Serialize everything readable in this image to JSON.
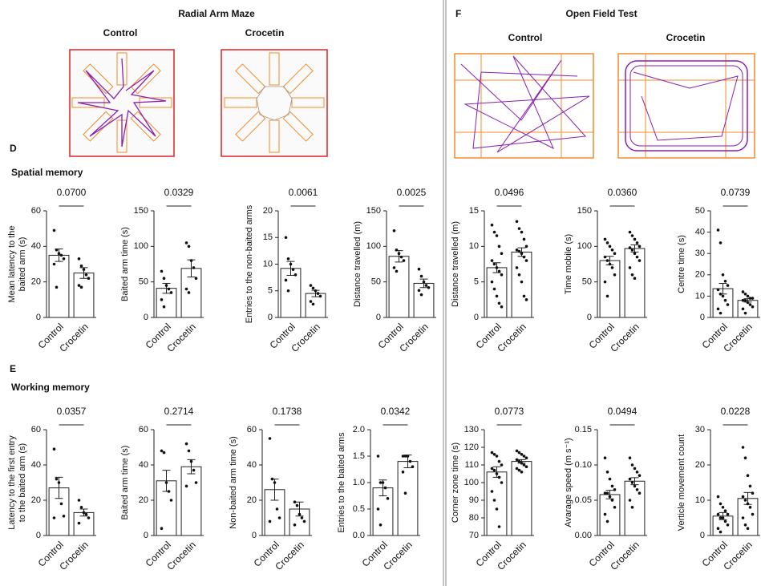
{
  "headers": {
    "maze_title": "Radial Arm Maze",
    "maze_control": "Control",
    "maze_crocetin": "Crocetin",
    "panel_d": "D",
    "spatial": "Spatial memory",
    "panel_e": "E",
    "working": "Working memory",
    "panel_f": "F",
    "oft_title": "Open Field Test",
    "oft_control": "Control",
    "oft_crocetin": "Crocetin"
  },
  "chart_data": [
    {
      "type": "bar",
      "y_label": [
        "Mean latency to the",
        "baited arm (s)"
      ],
      "annotation": "0.0700",
      "categories": [
        "Control",
        "Crocetin"
      ],
      "values": [
        35,
        25
      ],
      "errors": [
        3.5,
        3
      ],
      "points": [
        [
          49,
          38,
          36,
          35,
          33,
          30,
          17
        ],
        [
          33,
          29,
          27,
          24,
          22,
          18,
          17
        ]
      ],
      "color": "#ffffff",
      "ylim": [
        0,
        60
      ],
      "yticks": [
        0,
        20,
        40,
        60
      ]
    },
    {
      "type": "bar",
      "y_label": [
        "Baited arm time (s)"
      ],
      "annotation": "0.0329",
      "categories": [
        "Control",
        "Crocetin"
      ],
      "values": [
        41,
        69
      ],
      "errors": [
        7,
        12
      ],
      "points": [
        [
          65,
          55,
          45,
          40,
          35,
          25,
          15
        ],
        [
          105,
          100,
          80,
          70,
          55,
          40,
          35
        ]
      ],
      "color": "#ffffff",
      "ylim": [
        0,
        150
      ],
      "yticks": [
        0,
        50,
        100,
        150
      ]
    },
    {
      "type": "bar",
      "y_label": [
        "Entries to the non-baited arms"
      ],
      "annotation": "0.0061",
      "categories": [
        "Control",
        "Crocetin"
      ],
      "values": [
        9.2,
        4.5
      ],
      "errors": [
        1.3,
        0.6
      ],
      "points": [
        [
          15,
          11,
          10,
          9,
          8,
          7,
          5
        ],
        [
          6,
          5.5,
          5,
          4.5,
          4,
          3,
          2.5
        ]
      ],
      "color": "#ffffff",
      "ylim": [
        0,
        20
      ],
      "yticks": [
        0,
        5,
        10,
        15,
        20
      ]
    },
    {
      "type": "bar",
      "y_label": [
        "Distance travelled (m)"
      ],
      "annotation": "0.0025",
      "categories": [
        "Control",
        "Crocetin"
      ],
      "values": [
        86,
        48
      ],
      "errors": [
        8,
        6
      ],
      "points": [
        [
          122,
          95,
          90,
          85,
          80,
          70,
          65
        ],
        [
          68,
          58,
          50,
          45,
          42,
          38,
          32
        ]
      ],
      "color": "#ffffff",
      "ylim": [
        0,
        150
      ],
      "yticks": [
        0,
        50,
        100,
        150
      ]
    },
    {
      "type": "bar",
      "y_label": [
        "Latency to the first entry",
        "to the baited arm (s)"
      ],
      "annotation": "0.0357",
      "categories": [
        "Control",
        "Crocetin"
      ],
      "values": [
        27,
        13
      ],
      "errors": [
        6,
        2
      ],
      "points": [
        [
          49,
          32,
          30,
          18,
          11,
          10
        ],
        [
          20,
          16,
          13,
          12,
          10,
          7
        ]
      ],
      "color": "#ffffff",
      "ylim": [
        0,
        60
      ],
      "yticks": [
        0,
        20,
        40,
        60
      ]
    },
    {
      "type": "bar",
      "y_label": [
        "Baited arm time (s)"
      ],
      "annotation": "0.2714",
      "categories": [
        "Control",
        "Crocetin"
      ],
      "values": [
        31,
        39
      ],
      "errors": [
        6,
        4
      ],
      "points": [
        [
          48,
          47,
          30,
          25,
          20,
          4
        ],
        [
          52,
          48,
          42,
          37,
          30,
          28
        ]
      ],
      "color": "#ffffff",
      "ylim": [
        0,
        60
      ],
      "yticks": [
        0,
        20,
        40,
        60
      ]
    },
    {
      "type": "bar",
      "y_label": [
        "Non-baited arm time (s)"
      ],
      "annotation": "0.1738",
      "categories": [
        "Control",
        "Crocetin"
      ],
      "values": [
        26,
        15
      ],
      "errors": [
        6,
        4
      ],
      "points": [
        [
          55,
          32,
          30,
          15,
          10,
          8
        ],
        [
          19,
          17,
          12,
          10,
          8,
          6
        ]
      ],
      "color": "#ffffff",
      "ylim": [
        0,
        60
      ],
      "yticks": [
        0,
        20,
        40,
        60
      ]
    },
    {
      "type": "bar",
      "y_label": [
        "Entries to the baited arms"
      ],
      "annotation": "0.0342",
      "categories": [
        "Control",
        "Crocetin"
      ],
      "values": [
        0.9,
        1.4
      ],
      "errors": [
        0.15,
        0.12
      ],
      "points": [
        [
          1.5,
          1.0,
          1.0,
          0.9,
          0.7,
          0.5,
          0.2
        ],
        [
          1.5,
          1.5,
          1.5,
          1.4,
          1.3,
          1.2,
          0.8
        ]
      ],
      "color": "#ffffff",
      "ylim": [
        0,
        2
      ],
      "yticks": [
        {
          "value": 0,
          "label": "0.0"
        },
        {
          "value": 0.5,
          "label": "0.5"
        },
        {
          "value": 1,
          "label": "1.0"
        },
        {
          "value": 1.5,
          "label": "1.5"
        },
        {
          "value": 2,
          "label": "2.0"
        }
      ]
    },
    {
      "type": "bar",
      "y_label": [
        "Distance travelled (m)"
      ],
      "annotation": "0.0496",
      "categories": [
        "Control",
        "Crocetin"
      ],
      "values": [
        7,
        9.2
      ],
      "errors": [
        0.7,
        0.6
      ],
      "points": [
        [
          13,
          12,
          11.5,
          10,
          9,
          8,
          7.5,
          7,
          6.5,
          6,
          5,
          4,
          3,
          2,
          1.5
        ],
        [
          13.5,
          12.5,
          12,
          11,
          10,
          9.5,
          9.3,
          9,
          8.5,
          8,
          7,
          6,
          5,
          3,
          2.5
        ]
      ],
      "color": "#ffffff",
      "ylim": [
        0,
        15
      ],
      "yticks": [
        0,
        5,
        10,
        15
      ]
    },
    {
      "type": "bar",
      "y_label": [
        "Time mobile (s)"
      ],
      "annotation": "0.0360",
      "categories": [
        "Control",
        "Crocetin"
      ],
      "values": [
        80,
        97
      ],
      "errors": [
        6,
        5
      ],
      "points": [
        [
          110,
          105,
          100,
          95,
          90,
          85,
          80,
          75,
          70,
          60,
          50,
          30
        ],
        [
          120,
          115,
          110,
          105,
          100,
          98,
          95,
          90,
          85,
          80,
          70,
          60,
          55
        ]
      ],
      "color": "#ffffff",
      "ylim": [
        0,
        150
      ],
      "yticks": [
        0,
        50,
        100,
        150
      ]
    },
    {
      "type": "bar",
      "y_label": [
        "Centre time (s)"
      ],
      "annotation": "0.0739",
      "categories": [
        "Control",
        "Crocetin"
      ],
      "values": [
        13.5,
        8
      ],
      "errors": [
        2.5,
        0.8
      ],
      "points": [
        [
          41,
          35,
          20,
          17,
          15,
          13,
          11,
          10,
          8,
          6,
          4,
          2
        ],
        [
          12,
          11,
          10,
          9,
          9,
          8,
          8,
          7,
          6,
          5,
          4,
          2
        ]
      ],
      "color": "#ffffff",
      "ylim": [
        0,
        50
      ],
      "yticks": [
        0,
        10,
        20,
        30,
        40,
        50
      ]
    },
    {
      "type": "bar",
      "y_label": [
        "Corner zone time (s)"
      ],
      "annotation": "0.0773",
      "categories": [
        "Control",
        "Crocetin"
      ],
      "values": [
        106,
        112
      ],
      "errors": [
        3,
        1
      ],
      "points": [
        [
          117,
          116,
          115,
          112,
          110,
          108,
          107,
          105,
          103,
          100,
          95,
          90,
          85,
          75
        ],
        [
          118,
          117,
          116,
          115,
          114,
          113,
          112,
          111,
          110,
          109,
          108,
          107,
          106
        ]
      ],
      "color": "#ffffff",
      "ylim": [
        70,
        130
      ],
      "yticks": [
        70,
        80,
        90,
        100,
        110,
        120,
        130
      ]
    },
    {
      "type": "bar",
      "y_label": [
        "Avarage speed (m s⁻¹)"
      ],
      "annotation": "0.0494",
      "categories": [
        "Control",
        "Crocetin"
      ],
      "values": [
        0.058,
        0.077
      ],
      "errors": [
        0.006,
        0.005
      ],
      "points": [
        [
          0.11,
          0.09,
          0.08,
          0.07,
          0.065,
          0.06,
          0.06,
          0.055,
          0.05,
          0.04,
          0.03,
          0.02
        ],
        [
          0.11,
          0.1,
          0.095,
          0.09,
          0.085,
          0.08,
          0.075,
          0.07,
          0.065,
          0.06,
          0.05,
          0.04
        ]
      ],
      "color": "#ffffff",
      "ylim": [
        0,
        0.15
      ],
      "yticks": [
        {
          "value": 0,
          "label": "0.00"
        },
        {
          "value": 0.05,
          "label": "0.05"
        },
        {
          "value": 0.1,
          "label": "0.10"
        },
        {
          "value": 0.15,
          "label": "0.15"
        }
      ]
    },
    {
      "type": "bar",
      "y_label": [
        "Verticle movement count"
      ],
      "annotation": "0.0228",
      "categories": [
        "Control",
        "Crocetin"
      ],
      "values": [
        5.5,
        10.5
      ],
      "errors": [
        1,
        1.7
      ],
      "points": [
        [
          11,
          9,
          8,
          7,
          6,
          6,
          5,
          5,
          4,
          3,
          2,
          1
        ],
        [
          25,
          22,
          17,
          14,
          12,
          11,
          10,
          9,
          8,
          6,
          5,
          3,
          2
        ]
      ],
      "color": "#ffffff",
      "ylim": [
        0,
        30
      ],
      "yticks": [
        0,
        10,
        20,
        30
      ]
    }
  ]
}
